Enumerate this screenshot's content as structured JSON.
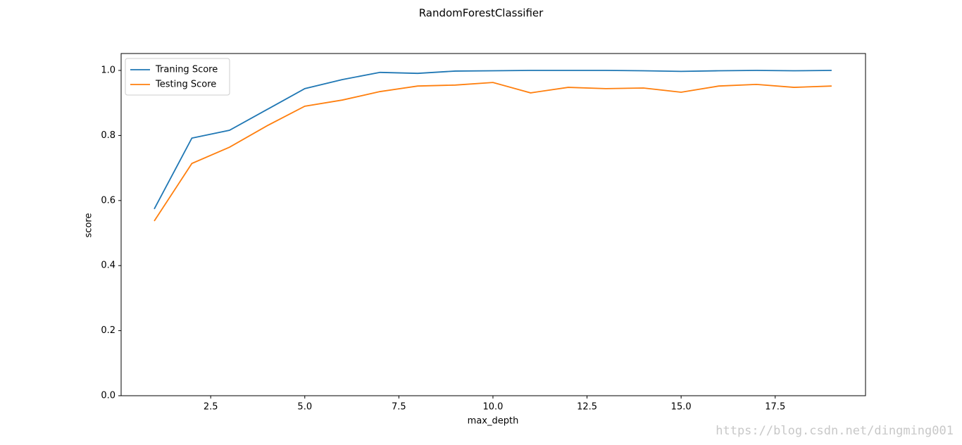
{
  "chart_data": {
    "type": "line",
    "title": "RandomForestClassifier",
    "x_label": "max_depth",
    "y_label": "score",
    "x": [
      1,
      2,
      3,
      4,
      5,
      6,
      7,
      8,
      9,
      10,
      11,
      12,
      13,
      14,
      15,
      16,
      17,
      18,
      19
    ],
    "series": [
      {
        "name": "Traning Score",
        "color": "#1f77b4",
        "values": [
          0.574,
          0.792,
          0.816,
          0.88,
          0.944,
          0.972,
          0.994,
          0.991,
          0.998,
          0.999,
          1.0,
          1.0,
          1.0,
          0.999,
          0.997,
          0.999,
          1.0,
          0.999,
          1.0
        ]
      },
      {
        "name": "Testing Score",
        "color": "#ff7f0e",
        "values": [
          0.537,
          0.714,
          0.764,
          0.83,
          0.89,
          0.909,
          0.935,
          0.952,
          0.955,
          0.963,
          0.931,
          0.948,
          0.944,
          0.946,
          0.933,
          0.952,
          0.957,
          0.948,
          0.952
        ]
      }
    ],
    "xlim": [
      0.12,
      19.9
    ],
    "ylim": [
      0,
      1.052
    ],
    "xticks": [
      2.5,
      {
        "value": 5,
        "label": "5.0"
      },
      7.5,
      {
        "value": 10,
        "label": "10.0"
      },
      12.5,
      {
        "value": 15,
        "label": "15.0"
      },
      17.5
    ],
    "yticks": [
      {
        "value": 0,
        "label": "0.0"
      },
      0.2,
      0.4,
      0.6,
      0.8,
      {
        "value": 1,
        "label": "1.0"
      }
    ],
    "legend": "upper left",
    "grid": false,
    "watermark": "https://blog.csdn.net/dingming001"
  }
}
